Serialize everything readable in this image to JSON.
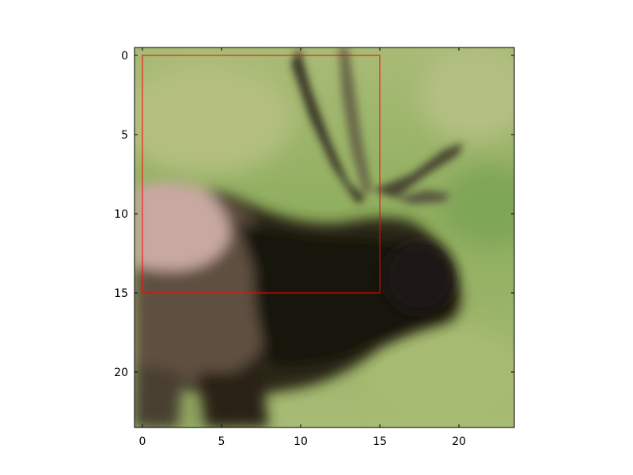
{
  "figure": {
    "x_tick_labels": [
      "0",
      "5",
      "10",
      "15",
      "20"
    ],
    "y_tick_labels": [
      "0",
      "5",
      "10",
      "15",
      "20"
    ],
    "xlim": [
      -0.5,
      23.5
    ],
    "ylim": [
      23.5,
      -0.5
    ],
    "x_ticks": [
      0,
      5,
      10,
      15,
      20
    ],
    "y_ticks": [
      0,
      5,
      10,
      15,
      20
    ],
    "image_subject": "elk with antlers, blurred low-resolution photo",
    "highlight_box": {
      "x0": 0,
      "y0": 0,
      "x1": 15,
      "y1": 15,
      "color": "#ff0000"
    },
    "colors": {
      "frame": "#000000",
      "grass": "#9fb46c",
      "grass_light": "#b1bf7c",
      "body_dark": "#1c1a12",
      "body_brown": "#5a4a3a",
      "rump_pink": "#c9a6a0"
    }
  }
}
